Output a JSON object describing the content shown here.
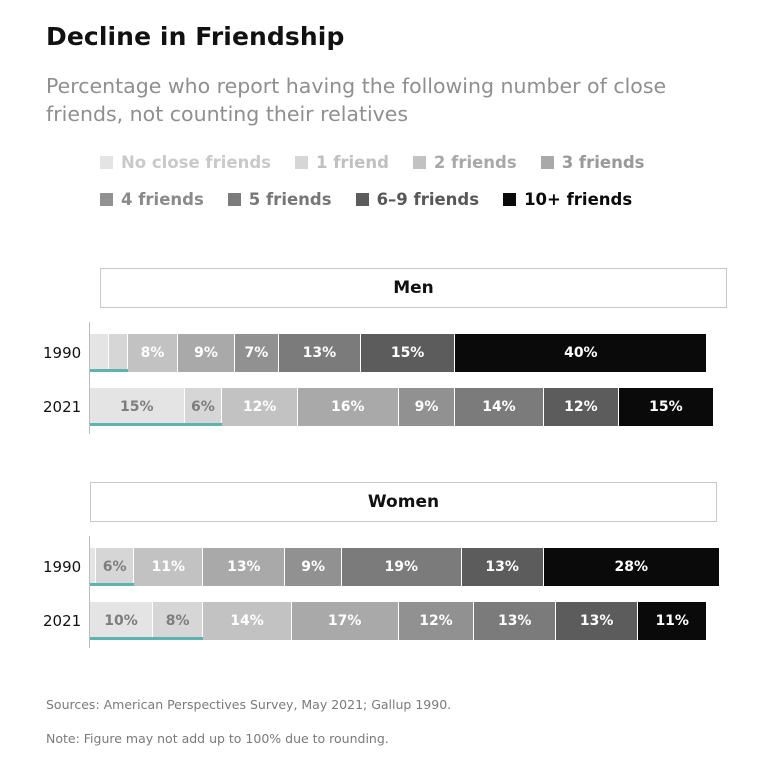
{
  "title": "Decline in Friendship",
  "subtitle": "Percentage who report having the following number of close friends, not counting their relatives",
  "legend": [
    {
      "label": "No close friends",
      "color": "#e4e4e4",
      "text_color": "#c9c9c9"
    },
    {
      "label": "1 friend",
      "color": "#d6d6d6",
      "text_color": "#c0c0c0"
    },
    {
      "label": "2 friends",
      "color": "#c2c2c2",
      "text_color": "#a8a8a8"
    },
    {
      "label": "3 friends",
      "color": "#a9a9a9",
      "text_color": "#999999"
    },
    {
      "label": "4 friends",
      "color": "#919191",
      "text_color": "#8a8a8a"
    },
    {
      "label": "5 friends",
      "color": "#7b7b7b",
      "text_color": "#777777"
    },
    {
      "label": "6–9 friends",
      "color": "#5c5c5c",
      "text_color": "#585858"
    },
    {
      "label": "10+ friends",
      "color": "#0a0a0a",
      "text_color": "#0a0a0a"
    }
  ],
  "panels": [
    {
      "name": "Men",
      "rows": [
        {
          "year": "1990",
          "values": [
            3,
            3,
            8,
            9,
            7,
            13,
            15,
            40
          ],
          "labels": [
            "",
            "",
            "8%",
            "9%",
            "7%",
            "13%",
            "15%",
            "40%"
          ],
          "underline": 6
        },
        {
          "year": "2021",
          "values": [
            15,
            6,
            12,
            16,
            9,
            14,
            12,
            15
          ],
          "labels": [
            "15%",
            "6%",
            "12%",
            "16%",
            "9%",
            "14%",
            "12%",
            "15%"
          ],
          "underline": 21
        }
      ]
    },
    {
      "name": "Women",
      "rows": [
        {
          "year": "1990",
          "values": [
            1,
            6,
            11,
            13,
            9,
            19,
            13,
            28
          ],
          "labels": [
            "",
            "6%",
            "11%",
            "13%",
            "9%",
            "19%",
            "13%",
            "28%"
          ],
          "underline": 7
        },
        {
          "year": "2021",
          "values": [
            10,
            8,
            14,
            17,
            12,
            13,
            13,
            11
          ],
          "labels": [
            "10%",
            "8%",
            "14%",
            "17%",
            "12%",
            "13%",
            "13%",
            "11%"
          ],
          "underline": 18
        }
      ]
    }
  ],
  "segment_text_colors": [
    "#7d7d7d",
    "#7d7d7d",
    "#ffffff",
    "#ffffff",
    "#ffffff",
    "#ffffff",
    "#ffffff",
    "#ffffff"
  ],
  "accent_color": "#5fb3ae",
  "sources": "Sources: American Perspectives Survey, May 2021; Gallup 1990.",
  "note": "Note: Figure may not add up to 100% due to rounding.",
  "chart_data": {
    "type": "bar",
    "orientation": "horizontal-stacked",
    "title": "Decline in Friendship",
    "subtitle": "Percentage who report having the following number of close friends, not counting their relatives",
    "stack_categories": [
      "No close friends",
      "1 friend",
      "2 friends",
      "3 friends",
      "4 friends",
      "5 friends",
      "6–9 friends",
      "10+ friends"
    ],
    "groups": [
      {
        "name": "Men",
        "series": [
          {
            "name": "1990",
            "values": [
              3,
              3,
              8,
              9,
              7,
              13,
              15,
              40
            ]
          },
          {
            "name": "2021",
            "values": [
              15,
              6,
              12,
              16,
              9,
              14,
              12,
              15
            ]
          }
        ]
      },
      {
        "name": "Women",
        "series": [
          {
            "name": "1990",
            "values": [
              1,
              6,
              11,
              13,
              9,
              19,
              13,
              28
            ]
          },
          {
            "name": "2021",
            "values": [
              10,
              8,
              14,
              17,
              12,
              13,
              13,
              11
            ]
          }
        ]
      }
    ],
    "unit": "%",
    "legend_position": "top",
    "grid": false
  }
}
